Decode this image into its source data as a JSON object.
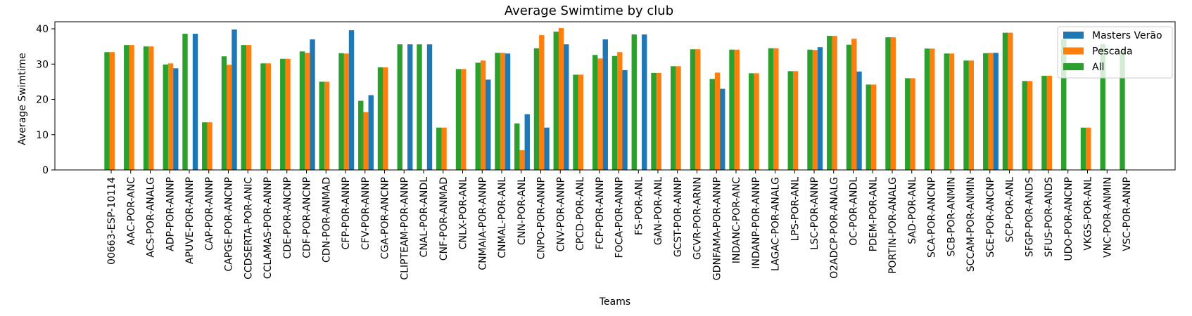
{
  "chart_data": {
    "type": "bar",
    "title": "Average Swimtime by club",
    "xlabel": "Teams",
    "ylabel": "Average Swimtime",
    "ylim": [
      0,
      42
    ],
    "yticks": [
      0,
      10,
      20,
      30,
      40
    ],
    "grid": false,
    "legend_position": "top-right",
    "categories": [
      "00663-ESP-10114",
      "AAC-POR-ANC",
      "ACS-POR-ANALG",
      "ADP-POR-ANNP",
      "APUVE-POR-ANNP",
      "CAP-POR-ANNP",
      "CAPGE-POR-ANCNP",
      "CCDSERTA-POR-ANIC",
      "CCLAMAS-POR-ANNP",
      "CDE-POR-ANCNP",
      "CDF-POR-ANCNP",
      "CDN-POR-ANMAD",
      "CFP-POR-ANNP",
      "CFV-POR-ANNP",
      "CGA-POR-ANCNP",
      "CLIPTEAM-POR-ANNP",
      "CNAL-POR-ANDL",
      "CNF-POR-ANMAD",
      "CNLX-POR-ANL",
      "CNMAIA-POR-ANNP",
      "CNMAL-POR-ANL",
      "CNN-POR-ANL",
      "CNPO-POR-ANNP",
      "CNV-POR-ANNP",
      "CPCD-POR-ANL",
      "FCP-POR-ANNP",
      "FOCA-POR-ANNP",
      "FS-POR-ANL",
      "GAN-POR-ANL",
      "GCST-POR-ANNP",
      "GCVR-POR-ARNN",
      "GDNFAMA-POR-ANNP",
      "INDANC-POR-ANC",
      "INDANP-POR-ANNP",
      "LAGAC-POR-ANALG",
      "LPS-POR-ANL",
      "LSC-POR-ANNP",
      "O2ADCP-POR-ANALG",
      "OC-POR-ANDL",
      "PDEM-POR-ANL",
      "PORTIN-POR-ANALG",
      "SAD-POR-ANL",
      "SCA-POR-ANCNP",
      "SCB-POR-ANMIN",
      "SCCAM-POR-ANMIN",
      "SCE-POR-ANCNP",
      "SCP-POR-ANL",
      "SFGP-POR-ANDS",
      "SFUS-POR-ANDS",
      "UDO-POR-ANCNP",
      "VKGS-POR-ANL",
      "VNC-POR-ANMIN",
      "VSC-POR-ANNP"
    ],
    "series": [
      {
        "name": "Masters Verão",
        "color": "#1f77b4",
        "values": [
          null,
          null,
          null,
          28.8,
          38.6,
          null,
          39.8,
          null,
          null,
          null,
          37.0,
          null,
          39.6,
          21.2,
          null,
          35.6,
          35.6,
          null,
          null,
          25.6,
          33.0,
          15.8,
          12.0,
          35.6,
          null,
          37.0,
          28.3,
          38.4,
          null,
          null,
          null,
          23.0,
          null,
          null,
          null,
          null,
          34.8,
          null,
          27.9,
          null,
          null,
          null,
          null,
          null,
          null,
          33.2,
          null,
          null,
          null,
          null,
          null,
          null,
          null
        ]
      },
      {
        "name": "Pescada",
        "color": "#ff7f0e",
        "values": [
          33.4,
          35.4,
          35.0,
          30.2,
          null,
          13.5,
          29.8,
          35.4,
          30.2,
          31.5,
          33.2,
          25.0,
          33.0,
          16.4,
          29.1,
          null,
          null,
          12.0,
          28.6,
          31.0,
          33.2,
          5.6,
          38.2,
          40.2,
          27.0,
          31.6,
          33.4,
          null,
          27.5,
          29.4,
          34.2,
          27.6,
          34.1,
          27.4,
          34.5,
          28.0,
          34.0,
          38.0,
          37.2,
          24.2,
          37.6,
          26.0,
          34.4,
          33.0,
          31.0,
          33.2,
          38.9,
          25.2,
          26.7,
          null,
          12.0,
          null,
          null
        ]
      },
      {
        "name": "All",
        "color": "#2ca02c",
        "values": [
          33.4,
          35.4,
          35.0,
          29.9,
          38.6,
          13.5,
          32.2,
          35.4,
          30.2,
          31.5,
          33.6,
          25.0,
          33.1,
          19.6,
          29.1,
          35.6,
          35.6,
          12.0,
          28.6,
          30.4,
          33.2,
          13.2,
          34.5,
          39.2,
          27.0,
          32.6,
          32.3,
          38.4,
          27.5,
          29.4,
          34.2,
          25.8,
          34.1,
          27.4,
          34.5,
          28.0,
          34.1,
          38.0,
          35.5,
          24.2,
          37.6,
          26.0,
          34.4,
          33.0,
          31.0,
          33.1,
          38.9,
          25.2,
          26.7,
          37.0,
          12.0,
          35.7,
          33.8
        ]
      }
    ]
  }
}
